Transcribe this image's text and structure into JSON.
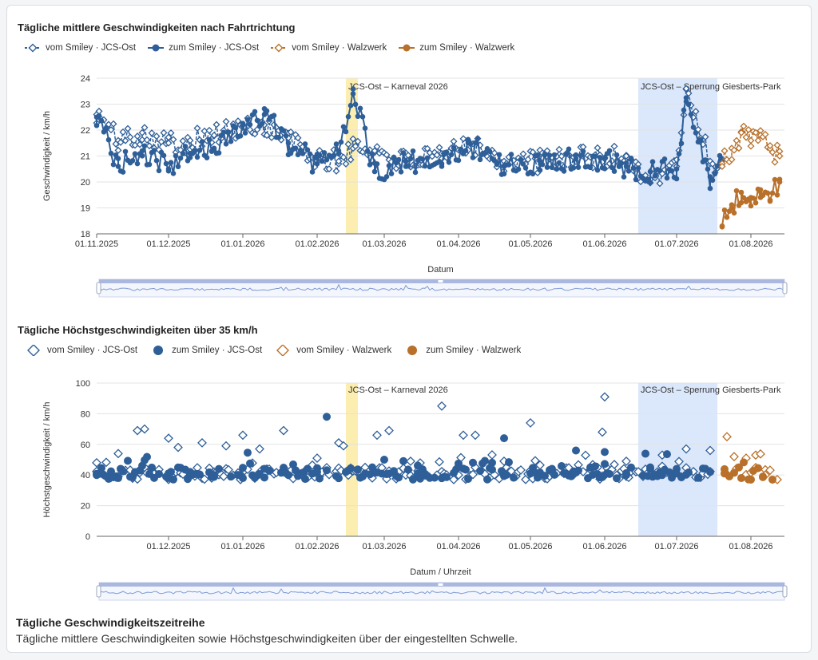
{
  "footer": {
    "title": "Tägliche Geschwindigkeitszeitreihe",
    "description": "Tägliche mittlere Geschwindigkeiten sowie Höchstgeschwindigkeiten über der eingestellten Schwelle."
  },
  "colors": {
    "blue": "#2f5f98",
    "orange": "#b8702a",
    "band_yellow": "#fbeeb0",
    "band_blue": "#dbe7fb"
  },
  "chart_data": [
    {
      "type": "line",
      "title": "Tägliche mittlere Geschwindigkeiten nach Fahrtrichtung",
      "xlabel": "Datum",
      "ylabel": "Geschwindigkeit / km/h",
      "ylim": [
        18,
        24
      ],
      "yticks": [
        "24",
        "23",
        "22",
        "21",
        "20",
        "19",
        "18"
      ],
      "xticks": [
        "01.11.2025",
        "01.12.2025",
        "01.01.2026",
        "01.02.2026",
        "01.03.2026",
        "01.04.2026",
        "01.05.2026",
        "01.06.2026",
        "01.07.2026",
        "01.08.2026"
      ],
      "xrange": [
        "2025-11-01",
        "2026-08-15"
      ],
      "grid": true,
      "legend_position": "top-left",
      "annotations": [
        {
          "label": "JCS-Ost – Karneval 2026",
          "start": "2026-02-13",
          "end": "2026-02-18",
          "color": "yellow"
        },
        {
          "label": "JCS-Ost – Sperrung Giesberts-Park",
          "start": "2026-06-15",
          "end": "2026-07-18",
          "color": "blue"
        }
      ],
      "series": [
        {
          "name": "vom Smiley · JCS-Ost",
          "marker": "diamond-open",
          "color": "blue",
          "x": [
            "2025-11-01",
            "2025-11-10",
            "2025-11-20",
            "2025-12-01",
            "2025-12-10",
            "2025-12-20",
            "2026-01-01",
            "2026-01-10",
            "2026-01-20",
            "2026-02-01",
            "2026-02-10",
            "2026-02-16",
            "2026-02-25",
            "2026-03-10",
            "2026-03-25",
            "2026-04-05",
            "2026-04-20",
            "2026-05-05",
            "2026-05-20",
            "2026-06-01",
            "2026-06-10",
            "2026-06-20",
            "2026-07-01",
            "2026-07-05",
            "2026-07-15",
            "2026-07-20"
          ],
          "y": [
            22.6,
            21.6,
            21.9,
            21.5,
            21.6,
            21.8,
            22.1,
            22.2,
            21.7,
            20.8,
            20.8,
            21.3,
            21.2,
            20.8,
            20.9,
            21.6,
            20.8,
            20.8,
            21.0,
            20.9,
            21.0,
            20.1,
            20.6,
            23.6,
            20.8,
            20.7
          ]
        },
        {
          "name": "zum Smiley · JCS-Ost",
          "marker": "circle",
          "color": "blue",
          "x": [
            "2025-11-01",
            "2025-11-10",
            "2025-11-20",
            "2025-12-01",
            "2025-12-10",
            "2025-12-20",
            "2026-01-01",
            "2026-01-10",
            "2026-01-20",
            "2026-02-01",
            "2026-02-10",
            "2026-02-16",
            "2026-02-25",
            "2026-03-10",
            "2026-03-25",
            "2026-04-05",
            "2026-04-20",
            "2026-05-05",
            "2026-05-20",
            "2026-06-01",
            "2026-06-10",
            "2026-06-20",
            "2026-07-01",
            "2026-07-05",
            "2026-07-15",
            "2026-07-20"
          ],
          "y": [
            22.5,
            20.6,
            21.2,
            20.5,
            21.1,
            21.3,
            22.2,
            22.6,
            21.5,
            20.7,
            21.2,
            23.4,
            20.4,
            20.8,
            20.7,
            21.5,
            20.6,
            20.8,
            20.9,
            20.9,
            20.6,
            20.4,
            20.5,
            23.1,
            20.2,
            20.8
          ]
        },
        {
          "name": "vom Smiley · Walzwerk",
          "marker": "diamond-open",
          "color": "orange",
          "x": [
            "2026-07-20",
            "2026-07-24",
            "2026-07-28",
            "2026-08-01",
            "2026-08-05",
            "2026-08-09",
            "2026-08-13"
          ],
          "y": [
            20.6,
            21.3,
            21.9,
            21.6,
            21.8,
            21.4,
            21.0
          ]
        },
        {
          "name": "zum Smiley · Walzwerk",
          "marker": "circle",
          "color": "orange",
          "x": [
            "2026-07-20",
            "2026-07-24",
            "2026-07-28",
            "2026-08-01",
            "2026-08-05",
            "2026-08-09",
            "2026-08-13"
          ],
          "y": [
            18.3,
            19.0,
            19.6,
            19.4,
            19.7,
            19.3,
            20.1
          ]
        }
      ]
    },
    {
      "type": "scatter",
      "title": "Tägliche Höchstgeschwindigkeiten über 35 km/h",
      "xlabel": "Datum / Uhrzeit",
      "ylabel": "Höchstgeschwindigkeit / km/h",
      "ylim": [
        0,
        100
      ],
      "yticks": [
        "100",
        "80",
        "60",
        "40",
        "20",
        "0"
      ],
      "xticks": [
        "01.12.2025",
        "01.01.2026",
        "01.02.2026",
        "01.03.2026",
        "01.04.2026",
        "01.05.2026",
        "01.06.2026",
        "01.07.2026",
        "01.08.2026"
      ],
      "xrange": [
        "2025-11-01",
        "2026-08-15"
      ],
      "grid": true,
      "legend_position": "top-left",
      "annotations": [
        {
          "label": "JCS-Ost – Karneval 2026",
          "start": "2026-02-13",
          "end": "2026-02-18",
          "color": "yellow"
        },
        {
          "label": "JCS-Ost – Sperrung Giesberts-Park",
          "start": "2026-06-15",
          "end": "2026-07-18",
          "color": "blue"
        }
      ],
      "series": [
        {
          "name": "vom Smiley · JCS-Ost",
          "marker": "diamond-open",
          "color": "blue",
          "x": [
            "2025-11-01",
            "2025-11-10",
            "2025-11-18",
            "2025-11-21",
            "2025-12-01",
            "2025-12-05",
            "2025-12-15",
            "2025-12-25",
            "2026-01-01",
            "2026-01-08",
            "2026-01-18",
            "2026-02-01",
            "2026-02-10",
            "2026-02-12",
            "2026-02-26",
            "2026-03-03",
            "2026-03-12",
            "2026-03-25",
            "2026-04-03",
            "2026-04-08",
            "2026-04-20",
            "2026-05-01",
            "2026-05-15",
            "2026-05-31",
            "2026-06-01",
            "2026-06-10",
            "2026-06-25",
            "2026-07-05",
            "2026-07-15"
          ],
          "y": [
            48,
            54,
            69,
            70,
            64,
            58,
            61,
            59,
            66,
            57,
            69,
            51,
            61,
            59,
            66,
            69,
            49,
            85,
            66,
            66,
            49,
            74,
            41,
            68,
            91,
            49,
            53,
            57,
            56
          ]
        },
        {
          "name": "zum Smiley · JCS-Ost",
          "marker": "circle",
          "color": "blue",
          "x": [
            "2025-11-01",
            "2025-11-10",
            "2025-11-20",
            "2025-12-01",
            "2025-12-10",
            "2025-12-20",
            "2026-01-01",
            "2026-01-10",
            "2026-01-20",
            "2026-02-01",
            "2026-02-05",
            "2026-02-13",
            "2026-02-20",
            "2026-03-01",
            "2026-03-15",
            "2026-04-01",
            "2026-04-15",
            "2026-04-20",
            "2026-05-01",
            "2026-05-10",
            "2026-05-20",
            "2026-06-01",
            "2026-06-10",
            "2026-06-20",
            "2026-07-01",
            "2026-07-15"
          ],
          "y": [
            40,
            38,
            46,
            38,
            42,
            40,
            38,
            44,
            40,
            42,
            78,
            42,
            39,
            50,
            41,
            46,
            48,
            64,
            41,
            44,
            56,
            55,
            40,
            45,
            41,
            42
          ]
        },
        {
          "name": "vom Smiley · Walzwerk",
          "marker": "diamond-open",
          "color": "orange",
          "x": [
            "2026-07-22",
            "2026-07-25",
            "2026-07-30",
            "2026-08-03",
            "2026-08-07",
            "2026-08-12"
          ],
          "y": [
            65,
            52,
            51,
            53,
            40,
            37
          ]
        },
        {
          "name": "zum Smiley · Walzwerk",
          "marker": "circle",
          "color": "orange",
          "x": [
            "2026-07-21",
            "2026-07-28",
            "2026-08-01",
            "2026-08-06",
            "2026-08-10"
          ],
          "y": [
            41,
            38,
            37,
            39,
            37
          ]
        }
      ]
    }
  ]
}
